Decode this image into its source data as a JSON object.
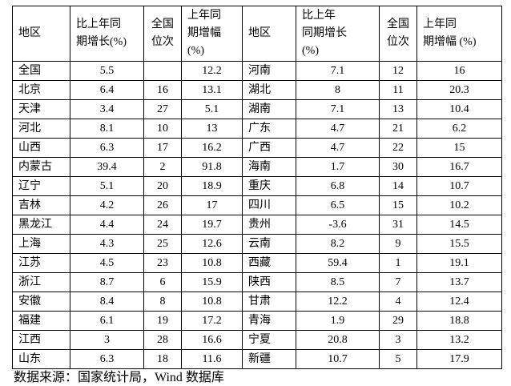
{
  "headers": [
    "地区",
    "比上年同\n期增长(%)",
    "全国\n位次",
    "上年同\n期增幅\n(%)",
    "地区",
    "比上年\n同期增长\n(%)",
    "全国\n位次",
    "上年同\n期增幅 (%)"
  ],
  "rows": [
    [
      "全国",
      "5.5",
      "",
      "12.2",
      "河南",
      "7.1",
      "12",
      "16"
    ],
    [
      "北京",
      "6.4",
      "16",
      "13.1",
      "湖北",
      "8",
      "11",
      "20.3"
    ],
    [
      "天津",
      "3.4",
      "27",
      "5.1",
      "湖南",
      "7.1",
      "13",
      "10.4"
    ],
    [
      "河北",
      "8.1",
      "10",
      "13",
      "广东",
      "4.7",
      "21",
      "6.2"
    ],
    [
      "山西",
      "6.3",
      "17",
      "16.2",
      "广西",
      "4.7",
      "22",
      "15"
    ],
    [
      "内蒙古",
      "39.4",
      "2",
      "91.8",
      "海南",
      "1.7",
      "30",
      "16.7"
    ],
    [
      "辽宁",
      "5.1",
      "20",
      "18.9",
      "重庆",
      "6.8",
      "14",
      "10.7"
    ],
    [
      "吉林",
      "4.2",
      "26",
      "17",
      "四川",
      "6.5",
      "15",
      "10.2"
    ],
    [
      "黑龙江",
      "4.4",
      "24",
      "19.7",
      "贵州",
      "-3.6",
      "31",
      "14.5"
    ],
    [
      "上海",
      "4.3",
      "25",
      "12.6",
      "云南",
      "8.2",
      "9",
      "15.5"
    ],
    [
      "江苏",
      "4.5",
      "23",
      "10.8",
      "西藏",
      "59.4",
      "1",
      "19.1"
    ],
    [
      "浙江",
      "8.7",
      "6",
      "15.9",
      "陕西",
      "8.5",
      "7",
      "13.7"
    ],
    [
      "安徽",
      "8.4",
      "8",
      "10.8",
      "甘肃",
      "12.2",
      "4",
      "12.4"
    ],
    [
      "福建",
      "6.1",
      "19",
      "17.2",
      "青海",
      "1.9",
      "29",
      "18.8"
    ],
    [
      "江西",
      "3",
      "28",
      "16.6",
      "宁夏",
      "20.8",
      "3",
      "13.2"
    ],
    [
      "山东",
      "6.3",
      "18",
      "11.6",
      "新疆",
      "10.7",
      "5",
      "17.9"
    ]
  ],
  "source": "数据来源：国家统计局，Wind 数据库"
}
